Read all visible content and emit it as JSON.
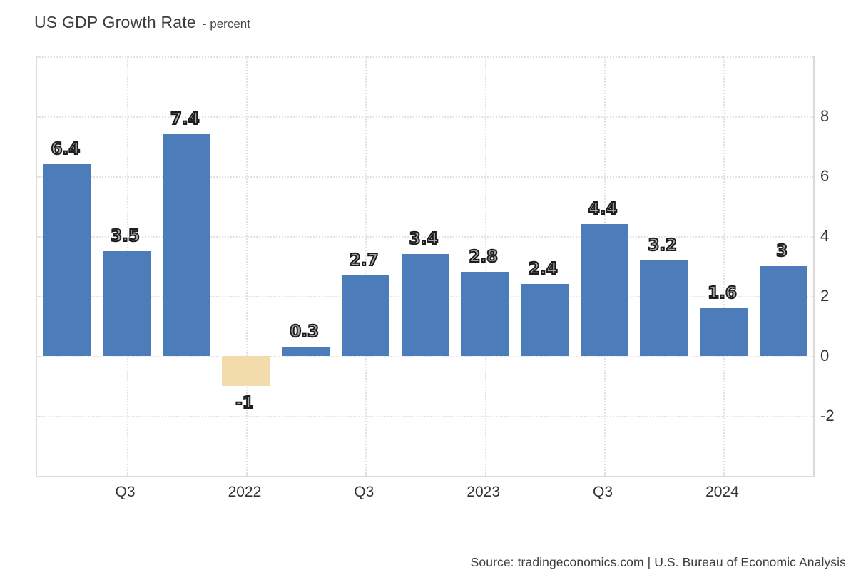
{
  "header": {
    "title": "US GDP Growth Rate",
    "subtitle": "- percent"
  },
  "footer": {
    "source": "Source: tradingeconomics.com | U.S. Bureau of Economic Analysis"
  },
  "chart_data": {
    "type": "bar",
    "title": "US GDP Growth Rate",
    "unit": "percent",
    "values": [
      6.4,
      3.5,
      7.4,
      -1,
      0.3,
      2.7,
      3.4,
      2.8,
      2.4,
      4.4,
      3.2,
      1.6,
      3
    ],
    "bar_labels": [
      "6.4",
      "3.5",
      "7.4",
      "-1",
      "0.3",
      "2.7",
      "3.4",
      "2.8",
      "2.4",
      "4.4",
      "3.2",
      "1.6",
      "3"
    ],
    "x_tick_labels": [
      {
        "label": "Q3",
        "bar_index": 1
      },
      {
        "label": "2022",
        "bar_index": 3
      },
      {
        "label": "Q3",
        "bar_index": 5
      },
      {
        "label": "2023",
        "bar_index": 7
      },
      {
        "label": "Q3",
        "bar_index": 9
      },
      {
        "label": "2024",
        "bar_index": 11
      }
    ],
    "y_ticks": [
      8,
      6,
      4,
      2,
      0,
      -2
    ],
    "ylim": [
      -4,
      10
    ],
    "xlabel": "",
    "ylabel": "",
    "legend": false,
    "grid": true,
    "positive_color": "#4d7cba",
    "negative_color": "#f3dcab"
  }
}
